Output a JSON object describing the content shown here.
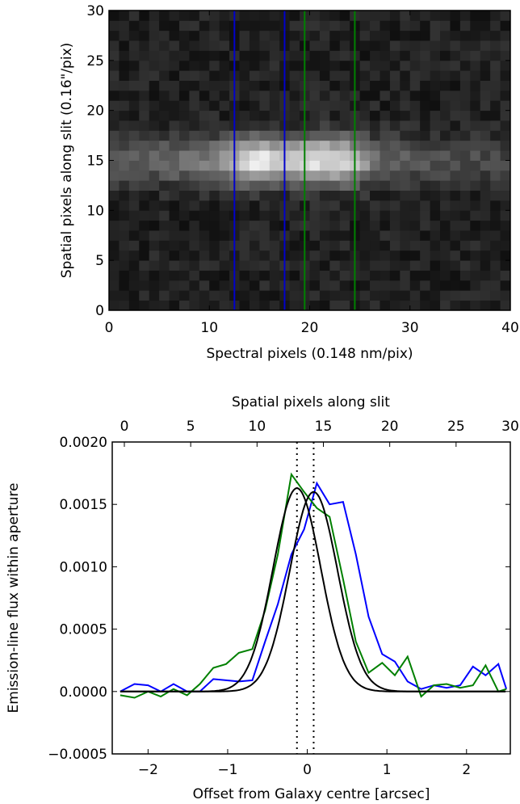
{
  "chart_data": [
    {
      "type": "heatmap",
      "xlabel": "Spectral pixels (0.148 nm/pix)",
      "ylabel": "Spatial pixels along slit (0.16\"/pix)",
      "xlim": [
        0,
        40
      ],
      "ylim": [
        0,
        30
      ],
      "xticks": [
        "0",
        "10",
        "20",
        "30",
        "40"
      ],
      "yticks": [
        "0",
        "5",
        "10",
        "15",
        "20",
        "25",
        "30"
      ],
      "colormap": "gray",
      "emission_profile": {
        "center_row": 15,
        "width_rows": 2.3,
        "knots_x": [
          0,
          5,
          8,
          10,
          12,
          14,
          15,
          17,
          18,
          19,
          20,
          22,
          24,
          26,
          28,
          30,
          35,
          40
        ],
        "knots_intensity": [
          0.28,
          0.33,
          0.38,
          0.45,
          0.62,
          0.92,
          1.0,
          0.8,
          0.76,
          0.82,
          0.9,
          0.95,
          0.85,
          0.45,
          0.3,
          0.26,
          0.2,
          0.18
        ]
      },
      "aperture_lines": [
        {
          "x": 12.5,
          "color": "#0000cc"
        },
        {
          "x": 17.5,
          "color": "#0000cc"
        },
        {
          "x": 19.5,
          "color": "#008000"
        },
        {
          "x": 24.5,
          "color": "#008000"
        }
      ]
    },
    {
      "type": "line",
      "xlabel": "Offset from Galaxy centre [arcsec]",
      "ylabel": "Emission-line flux within aperture",
      "top_xlabel": "Spatial pixels along slit",
      "xlim": [
        -2.45,
        2.55
      ],
      "ylim": [
        -0.0005,
        0.002
      ],
      "xticks": [
        "−2",
        "−1",
        "0",
        "1",
        "2"
      ],
      "yticks": [
        "−0.0005",
        "0.0000",
        "0.0005",
        "0.0010",
        "0.0015",
        "0.0020"
      ],
      "top_xticks": [
        "0",
        "5",
        "10",
        "15",
        "20",
        "25",
        "30"
      ],
      "vlines_dotted": [
        -0.13,
        0.08
      ],
      "series": [
        {
          "color": "#0000ff",
          "x": [
            -2.35,
            -2.17,
            -2.0,
            -1.84,
            -1.68,
            -1.51,
            -1.35,
            -1.18,
            -1.02,
            -0.86,
            -0.69,
            -0.53,
            -0.37,
            -0.2,
            -0.04,
            0.12,
            0.28,
            0.45,
            0.61,
            0.77,
            0.94,
            1.1,
            1.26,
            1.43,
            1.59,
            1.75,
            1.92,
            2.08,
            2.24,
            2.4,
            2.5
          ],
          "values": [
            0.0,
            6e-05,
            5e-05,
            0.0,
            6e-05,
            0.0,
            0.0,
            0.0001,
            9e-05,
            8e-05,
            9e-05,
            0.0004,
            0.0007,
            0.0011,
            0.0013,
            0.00167,
            0.0015,
            0.00152,
            0.0011,
            0.0006,
            0.0003,
            0.00024,
            8e-05,
            2e-05,
            5e-05,
            3e-05,
            5e-05,
            0.0002,
            0.00013,
            0.00022,
            2e-05
          ]
        },
        {
          "color": "#008000",
          "x": [
            -2.35,
            -2.17,
            -2.0,
            -1.84,
            -1.68,
            -1.51,
            -1.35,
            -1.18,
            -1.02,
            -0.86,
            -0.69,
            -0.53,
            -0.37,
            -0.2,
            -0.04,
            0.12,
            0.28,
            0.45,
            0.61,
            0.77,
            0.94,
            1.1,
            1.26,
            1.43,
            1.59,
            1.75,
            1.92,
            2.08,
            2.24,
            2.4,
            2.5
          ],
          "values": [
            -3e-05,
            -5e-05,
            0.0,
            -4e-05,
            2e-05,
            -3e-05,
            6e-05,
            0.00019,
            0.00022,
            0.00031,
            0.00034,
            0.00065,
            0.0011,
            0.00174,
            0.0016,
            0.00147,
            0.0014,
            0.0009,
            0.0004,
            0.00015,
            0.00023,
            0.00013,
            0.00028,
            -4e-05,
            5e-05,
            6e-05,
            3e-05,
            5e-05,
            0.00021,
            0.0,
            2e-05
          ]
        },
        {
          "color": "#000000",
          "gaussian": {
            "amp": 0.00163,
            "mu": -0.13,
            "sigma": 0.3
          }
        },
        {
          "color": "#000000",
          "gaussian": {
            "amp": 0.0016,
            "mu": 0.08,
            "sigma": 0.3
          }
        }
      ]
    }
  ]
}
